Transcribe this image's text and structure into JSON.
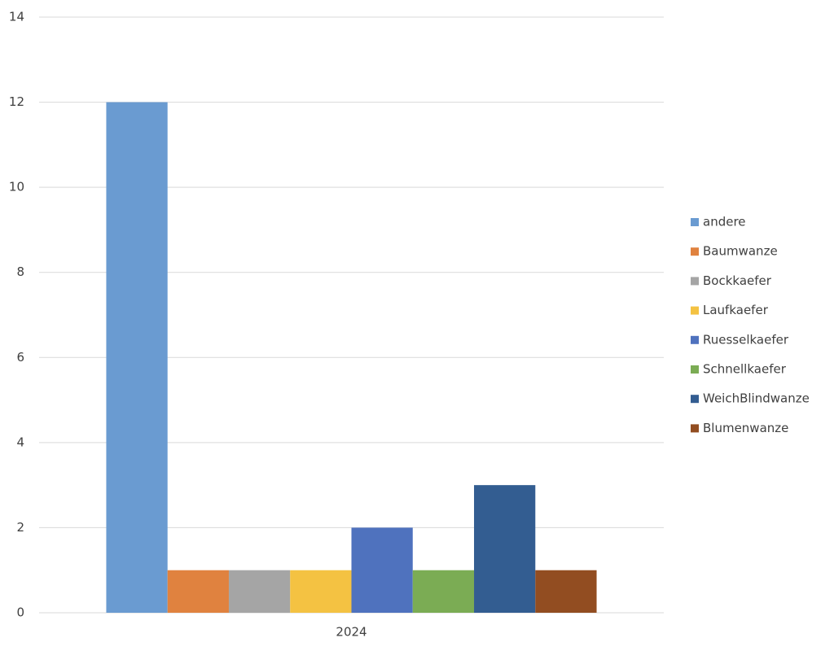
{
  "chart_data": {
    "type": "bar",
    "categories": [
      "2024"
    ],
    "series": [
      {
        "name": "andere",
        "color": "#6a9bd1",
        "values": [
          12
        ]
      },
      {
        "name": "Baumwanze",
        "color": "#e0823f",
        "values": [
          1
        ]
      },
      {
        "name": "Bockkaefer",
        "color": "#a5a5a5",
        "values": [
          1
        ]
      },
      {
        "name": "Laufkaefer",
        "color": "#f4c242",
        "values": [
          1
        ]
      },
      {
        "name": "Ruesselkaefer",
        "color": "#4f72be",
        "values": [
          2
        ]
      },
      {
        "name": "Schnellkaefer",
        "color": "#7bac54",
        "values": [
          1
        ]
      },
      {
        "name": "WeichBlindwanze",
        "color": "#335d91",
        "values": [
          3
        ]
      },
      {
        "name": "Blumenwanze",
        "color": "#924d21",
        "values": [
          1
        ]
      }
    ],
    "ylim": [
      0,
      14
    ],
    "yticks": [
      0,
      2,
      4,
      6,
      8,
      10,
      12,
      14
    ],
    "grid": true,
    "legend": "right"
  }
}
